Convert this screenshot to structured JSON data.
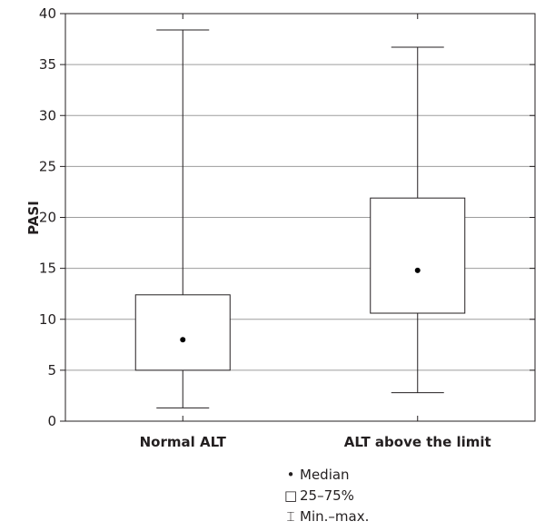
{
  "chart_data": {
    "type": "boxplot",
    "title": "",
    "xlabel": "",
    "ylabel": "PASI",
    "ylim": [
      0,
      40
    ],
    "yticks": [
      0,
      5,
      10,
      15,
      20,
      25,
      30,
      35,
      40
    ],
    "grid": "horizontal",
    "categories": [
      "Normal ALT",
      "ALT above the limit"
    ],
    "boxes": [
      {
        "category": "Normal ALT",
        "min": 1.3,
        "q1": 5.0,
        "median": 8.0,
        "q3": 12.4,
        "max": 38.4
      },
      {
        "category": "ALT above the limit",
        "min": 2.8,
        "q1": 10.6,
        "median": 14.8,
        "q3": 21.9,
        "max": 36.7
      }
    ],
    "legend": [
      {
        "symbol": "•",
        "label": "Median"
      },
      {
        "symbol": "□",
        "label": "25–75%"
      },
      {
        "symbol": "⌶",
        "label": "Min.–max."
      }
    ],
    "legend_position": "bottom-center"
  }
}
